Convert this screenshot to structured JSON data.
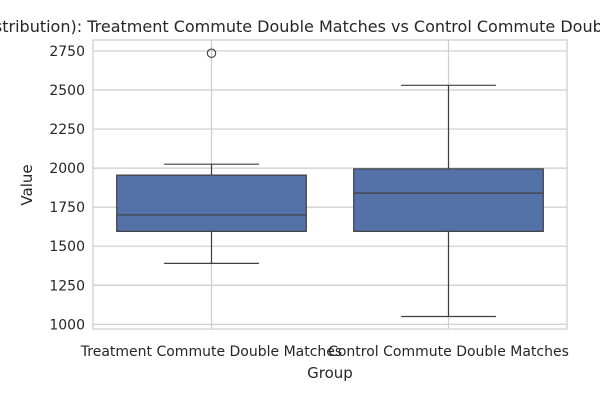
{
  "chart_data": {
    "type": "box",
    "title": "(Distribution): Treatment Commute Double Matches vs Control Commute Double Matches",
    "xlabel": "Group",
    "ylabel": "Value",
    "ylim": [
      970,
      2820
    ],
    "yticks": [
      1000,
      1250,
      1500,
      1750,
      2000,
      2250,
      2500,
      2750
    ],
    "grid": true,
    "box_color": "#5471a8",
    "line_color": "#3f3f3f",
    "categories": [
      "Treatment Commute Double Matches",
      "Control Commute Double Matches"
    ],
    "boxes": [
      {
        "name": "Treatment Commute Double Matches",
        "whisker_low": 1390,
        "q1": 1595,
        "median": 1700,
        "q3": 1955,
        "whisker_high": 2025,
        "outliers": [
          2735
        ]
      },
      {
        "name": "Control Commute Double Matches",
        "whisker_low": 1050,
        "q1": 1595,
        "median": 1840,
        "q3": 1995,
        "whisker_high": 2530,
        "outliers": []
      }
    ]
  }
}
